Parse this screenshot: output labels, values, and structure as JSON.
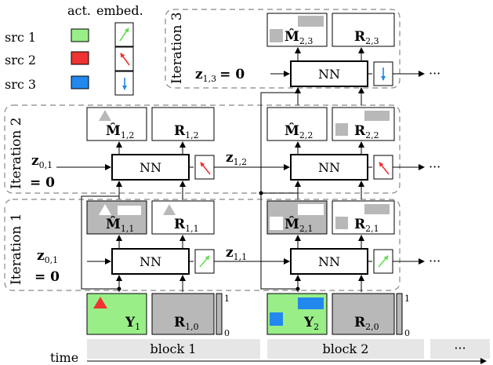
{
  "legend": {
    "col_act": "act.",
    "col_embed": "embed.",
    "sources": [
      {
        "label": "src 1",
        "color": "#99ee88",
        "arrow_color": "#66dd55"
      },
      {
        "label": "src 2",
        "color": "#ee3333",
        "arrow_color": "#ee3333"
      },
      {
        "label": "src 3",
        "color": "#2288ee",
        "arrow_color": "#2288ee"
      }
    ]
  },
  "iterations": [
    "Iteration 1",
    "Iteration 2",
    "Iteration 3"
  ],
  "nn_label": "NN",
  "math": {
    "z01": "z",
    "z01_sub": "0,1",
    "eq0": "= 0",
    "z11": "z",
    "z11_sub": "1,1",
    "z12": "z",
    "z12_sub": "1,2",
    "z13": "z",
    "z13_sub": "1,3",
    "z13_eq": "= 0",
    "Y1": "Y",
    "Y1_sub": "1",
    "Y2": "Y",
    "Y2_sub": "2",
    "R10": "R",
    "R10_sub": "1,0",
    "R20": "R",
    "R20_sub": "2,0",
    "M11": "M̂",
    "M11_sub": "1,1",
    "R11": "R",
    "R11_sub": "1,1",
    "M12": "M̂",
    "M12_sub": "1,2",
    "R12": "R",
    "R12_sub": "1,2",
    "M21": "M̂",
    "M21_sub": "2,1",
    "R21": "R",
    "R21_sub": "2,1",
    "M22": "M̂",
    "M22_sub": "2,2",
    "R22": "R",
    "R22_sub": "2,2",
    "M23": "M̂",
    "M23_sub": "2,3",
    "R23": "R",
    "R23_sub": "2,3"
  },
  "scale": {
    "top": "1",
    "bottom": "0"
  },
  "ellipsis": "···",
  "timeline": {
    "label": "time",
    "blocks": [
      "block 1",
      "block 2",
      "···"
    ]
  },
  "colors": {
    "active_green": "#99ee88",
    "inactive_gray": "#b8b8b8",
    "block_bar": "#e6e6e6",
    "iteration_border": "#888888"
  }
}
